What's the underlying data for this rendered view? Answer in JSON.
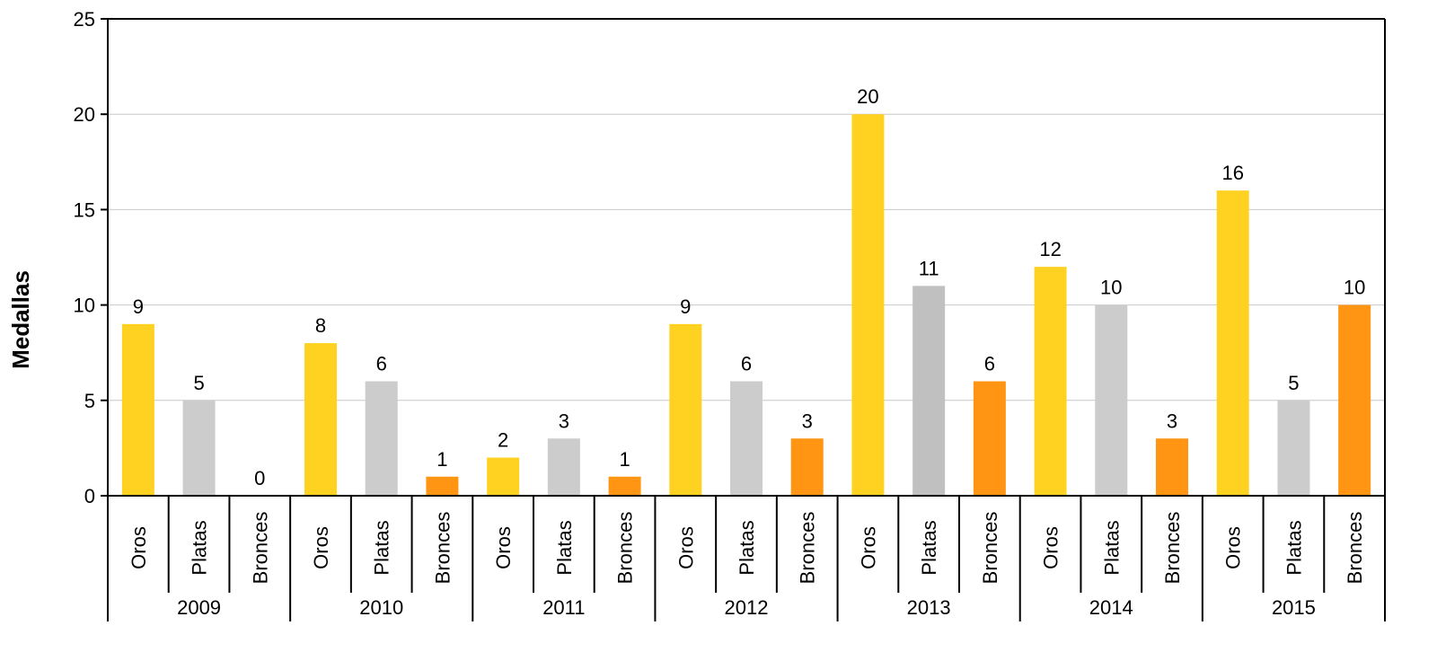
{
  "chart_data": {
    "type": "bar",
    "title": "",
    "xlabel": "",
    "ylabel": "Medallas",
    "ylim": [
      0,
      25
    ],
    "yticks": [
      0,
      5,
      10,
      15,
      20,
      25
    ],
    "grid": true,
    "legend": "none",
    "groups": [
      "2009",
      "2010",
      "2011",
      "2012",
      "2013",
      "2014",
      "2015"
    ],
    "subcategories": [
      "Oros",
      "Platas",
      "Bronces"
    ],
    "bars": [
      {
        "group": "2009",
        "category": "Oros",
        "value": 9,
        "color": "#FFD221"
      },
      {
        "group": "2009",
        "category": "Platas",
        "value": 5,
        "color": "#CCCCCC"
      },
      {
        "group": "2009",
        "category": "Bronces",
        "value": 0,
        "color": "#FF9512"
      },
      {
        "group": "2010",
        "category": "Oros",
        "value": 8,
        "color": "#FFD221"
      },
      {
        "group": "2010",
        "category": "Platas",
        "value": 6,
        "color": "#CCCCCC"
      },
      {
        "group": "2010",
        "category": "Bronces",
        "value": 1,
        "color": "#FF9512"
      },
      {
        "group": "2011",
        "category": "Oros",
        "value": 2,
        "color": "#FFD221"
      },
      {
        "group": "2011",
        "category": "Platas",
        "value": 3,
        "color": "#CCCCCC"
      },
      {
        "group": "2011",
        "category": "Bronces",
        "value": 1,
        "color": "#FF9512"
      },
      {
        "group": "2012",
        "category": "Oros",
        "value": 9,
        "color": "#FFD221"
      },
      {
        "group": "2012",
        "category": "Platas",
        "value": 6,
        "color": "#CCCCCC"
      },
      {
        "group": "2012",
        "category": "Bronces",
        "value": 3,
        "color": "#FF9512"
      },
      {
        "group": "2013",
        "category": "Oros",
        "value": 20,
        "color": "#FFD221"
      },
      {
        "group": "2013",
        "category": "Platas",
        "value": 11,
        "color": "#C0C0C0"
      },
      {
        "group": "2013",
        "category": "Bronces",
        "value": 6,
        "color": "#FF9512"
      },
      {
        "group": "2014",
        "category": "Oros",
        "value": 12,
        "color": "#FFD221"
      },
      {
        "group": "2014",
        "category": "Platas",
        "value": 10,
        "color": "#CCCCCC"
      },
      {
        "group": "2014",
        "category": "Bronces",
        "value": 3,
        "color": "#FF9512"
      },
      {
        "group": "2015",
        "category": "Oros",
        "value": 16,
        "color": "#FFD221"
      },
      {
        "group": "2015",
        "category": "Platas",
        "value": 5,
        "color": "#CCCCCC"
      },
      {
        "group": "2015",
        "category": "Bronces",
        "value": 10,
        "color": "#FF9512"
      }
    ]
  }
}
